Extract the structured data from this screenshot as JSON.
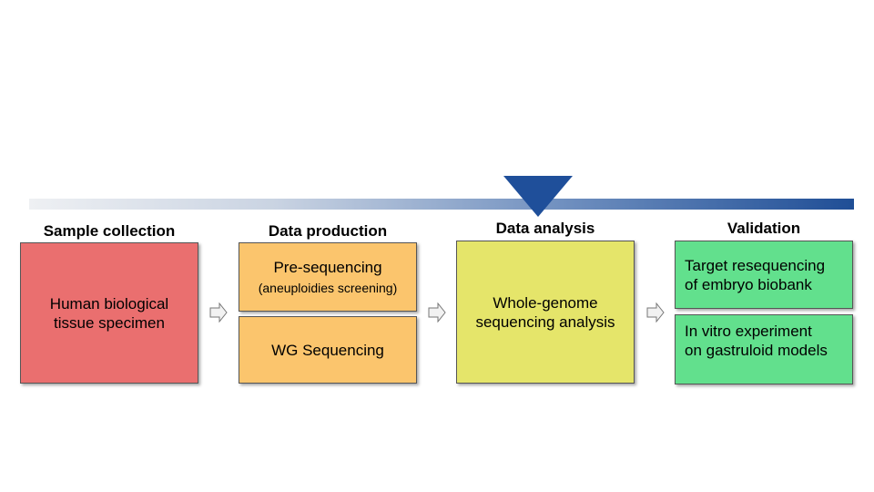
{
  "progress": {
    "marker_position_fraction": 0.61
  },
  "colors": {
    "bar_start": "#eef0f3",
    "bar_end": "#1f4e96",
    "marker": "#1f4f9a",
    "sample_box": "#ea6f6f",
    "production_box": "#fbc56d",
    "analysis_box": "#e5e56a",
    "validation_box": "#62e08d"
  },
  "stages": {
    "sample_collection": {
      "title": "Sample collection",
      "box_text": "Human biological\ntissue specimen"
    },
    "data_production": {
      "title": "Data production",
      "pre_seq_text": "Pre-sequencing",
      "pre_seq_sub": "(aneuploidies screening)",
      "wg_text": "WG Sequencing"
    },
    "data_analysis": {
      "title": "Data analysis",
      "box_text": "Whole-genome\nsequencing analysis"
    },
    "validation": {
      "title": "Validation",
      "resequencing_text": "Target resequencing\nof embryo biobank",
      "in_vitro_text": "In vitro experiment\non gastruloid models"
    }
  },
  "icons": {
    "flow_arrow": "right-arrow-outline-icon",
    "marker": "triangle-down-icon"
  }
}
